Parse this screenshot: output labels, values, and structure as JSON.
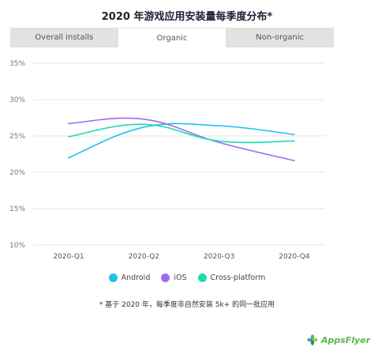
{
  "title": "2020 年游戏应用安装量每季度分布*",
  "tabs": [
    {
      "label": "Overall installs",
      "active": false
    },
    {
      "label": "Organic",
      "active": true
    },
    {
      "label": "Non-organic",
      "active": false
    }
  ],
  "footnote": "* 基于 2020 年，每季度非自然安装 5k+ 的同一批应用",
  "brand": {
    "name": "AppsFlyer",
    "color": "#5bb84a"
  },
  "chart_data": {
    "type": "line",
    "categories": [
      "2020-Q1",
      "2020-Q2",
      "2020-Q3",
      "2020-Q4"
    ],
    "ylim": [
      10,
      35
    ],
    "yticks": [
      10,
      15,
      20,
      25,
      30,
      35
    ],
    "ytick_labels": [
      "10%",
      "15%",
      "20%",
      "25%",
      "30%",
      "35%"
    ],
    "grid": true,
    "legend_position": "bottom",
    "series": [
      {
        "name": "Android",
        "color": "#1ec0f0",
        "values": [
          22.0,
          26.2,
          26.4,
          25.2
        ]
      },
      {
        "name": "iOS",
        "color": "#9f6af0",
        "values": [
          26.7,
          27.3,
          24.1,
          21.6
        ]
      },
      {
        "name": "Cross-platform",
        "color": "#19dcb0",
        "values": [
          24.9,
          26.6,
          24.3,
          24.3
        ]
      }
    ]
  }
}
